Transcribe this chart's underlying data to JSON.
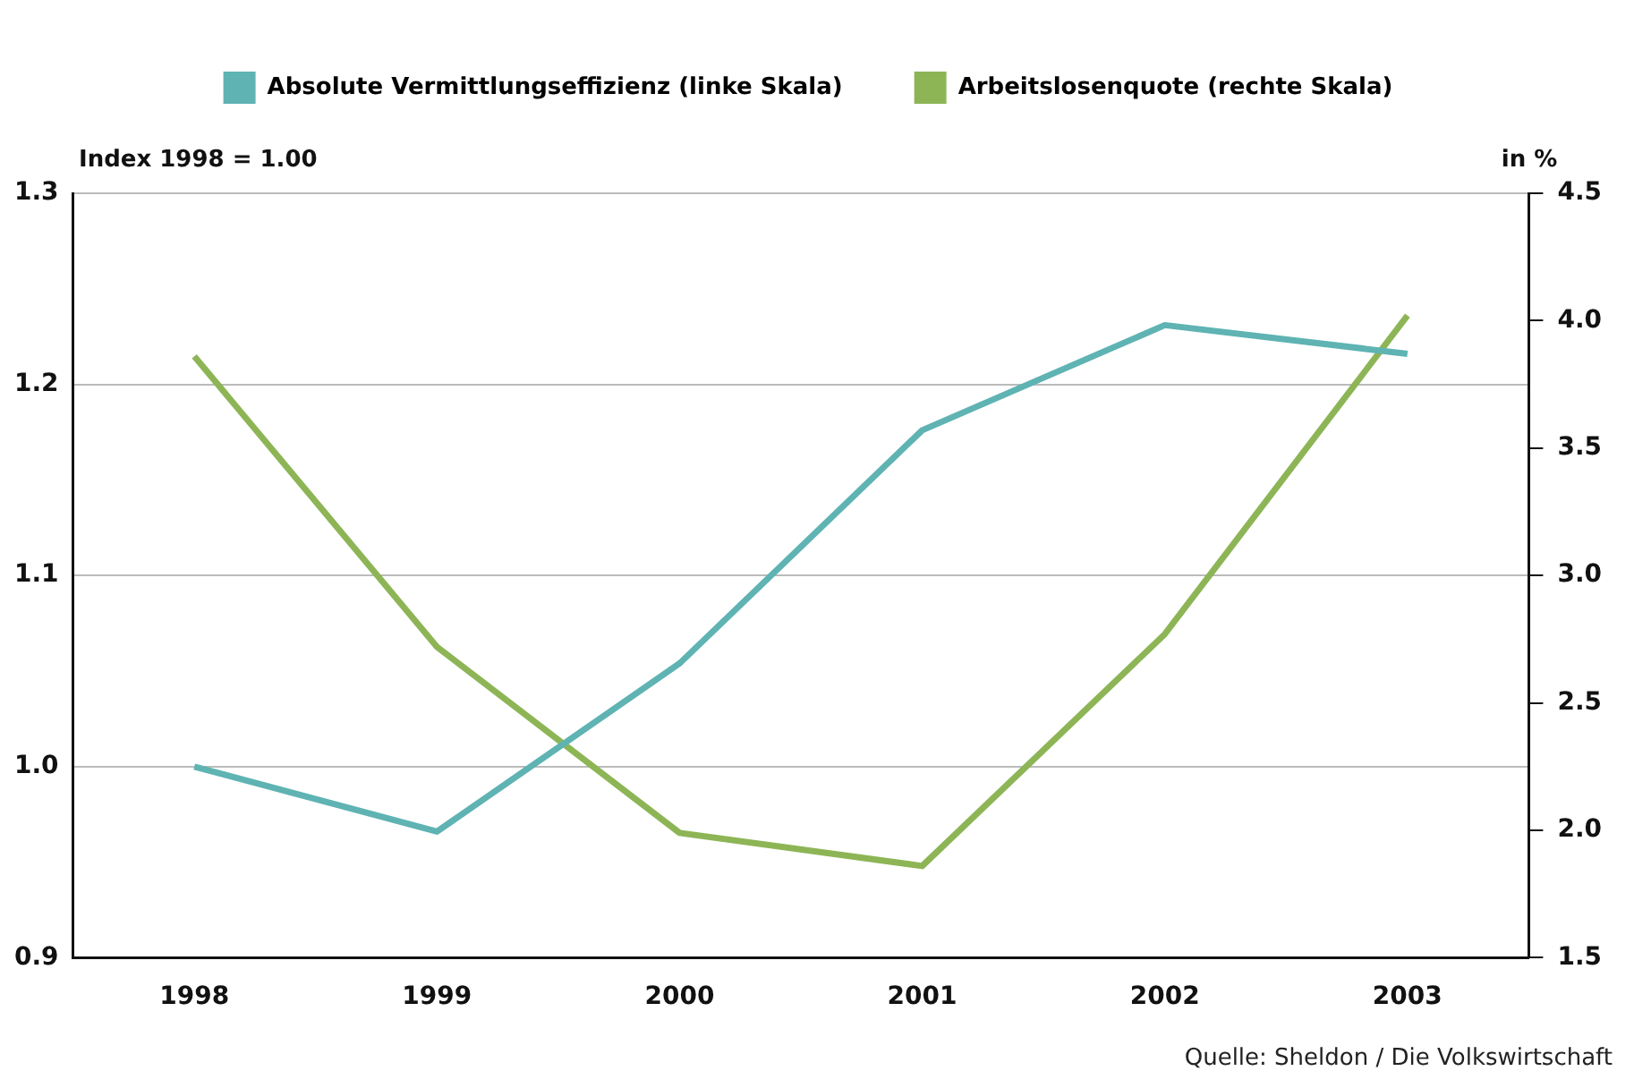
{
  "chart_data": {
    "type": "line",
    "categories": [
      "1998",
      "1999",
      "2000",
      "2001",
      "2002",
      "2003"
    ],
    "series": [
      {
        "name": "Absolute Vermittlungseffizienz (linke Skala)",
        "color": "#5fb3b3",
        "values": [
          1.0,
          0.966,
          1.054,
          1.176,
          1.231,
          1.216
        ]
      },
      {
        "name": "Arbeitslosenquote (rechte Skala)",
        "color": "#8db556",
        "axis": "y2",
        "values": [
          3.86,
          2.72,
          1.99,
          1.86,
          2.77,
          4.02
        ]
      }
    ],
    "ylabel": "Index 1998 = 1.00",
    "y2label": "in %",
    "ylim": [
      0.9,
      1.3
    ],
    "yticks": [
      {
        "value": 0.9,
        "label": "0.9"
      },
      {
        "value": 1.0,
        "label": "1.0"
      },
      {
        "value": 1.1,
        "label": "1.1"
      },
      {
        "value": 1.2,
        "label": "1.2"
      },
      {
        "value": 1.3,
        "label": "1.3"
      }
    ],
    "y2lim": [
      1.5,
      4.5
    ],
    "y2ticks": [
      {
        "value": 1.5,
        "label": "1.5"
      },
      {
        "value": 2.0,
        "label": "2.0"
      },
      {
        "value": 2.5,
        "label": "2.5"
      },
      {
        "value": 3.0,
        "label": "3.0"
      },
      {
        "value": 3.5,
        "label": "3.5"
      },
      {
        "value": 4.0,
        "label": "4.0"
      },
      {
        "value": 4.5,
        "label": "4.5"
      }
    ],
    "grid": "y",
    "legend": "top",
    "marker": "none",
    "line_style": "solid",
    "annotations": [
      "Quelle: Sheldon / Die Volkswirtschaft"
    ]
  }
}
